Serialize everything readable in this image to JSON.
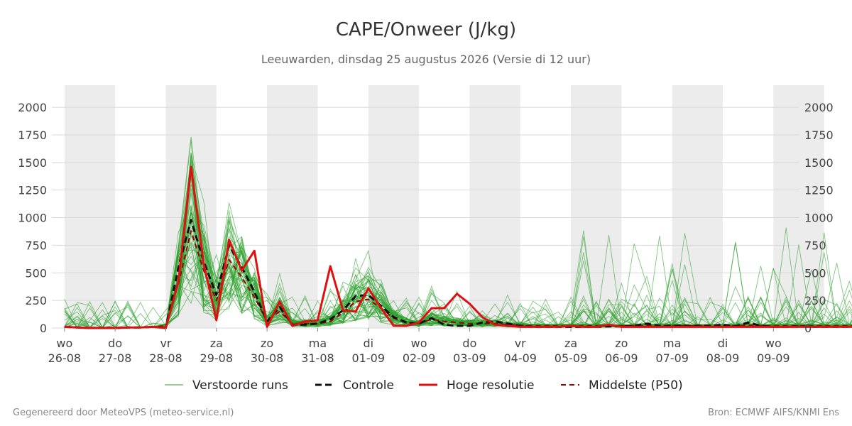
{
  "chart_data": {
    "type": "line",
    "title": "CAPE/Onweer (J/kg)",
    "subtitle": "Leeuwarden, dinsdag 25 augustus 2026 (Versie di 12 uur)",
    "ylim": [
      0,
      2200
    ],
    "yticks": [
      0,
      250,
      500,
      750,
      1000,
      1250,
      1500,
      1750,
      2000
    ],
    "xlim": [
      -0.25,
      14.5
    ],
    "x_step": 0.25,
    "x_ticks": [
      {
        "day": "wo",
        "date": "26-08"
      },
      {
        "day": "do",
        "date": "27-08"
      },
      {
        "day": "vr",
        "date": "28-08"
      },
      {
        "day": "za",
        "date": "29-08"
      },
      {
        "day": "zo",
        "date": "30-08"
      },
      {
        "day": "ma",
        "date": "31-08"
      },
      {
        "day": "di",
        "date": "01-09"
      },
      {
        "day": "wo",
        "date": "02-09"
      },
      {
        "day": "do",
        "date": "03-09"
      },
      {
        "day": "vr",
        "date": "04-09"
      },
      {
        "day": "za",
        "date": "05-09"
      },
      {
        "day": "zo",
        "date": "06-09"
      },
      {
        "day": "ma",
        "date": "07-09"
      },
      {
        "day": "di",
        "date": "08-09"
      },
      {
        "day": "wo",
        "date": "09-09"
      }
    ],
    "shaded_days": [
      0,
      2,
      4,
      6,
      8,
      10,
      12,
      14
    ],
    "grid": true,
    "legend_position": "bottom",
    "series": [
      {
        "name": "Verstoorde runs",
        "style": "ensemble",
        "color": "#2ca02c",
        "values": []
      },
      {
        "name": "Controle",
        "style": "dashed",
        "color": "#111111",
        "values": [
          10,
          5,
          0,
          0,
          0,
          5,
          5,
          10,
          0,
          550,
          980,
          600,
          300,
          750,
          550,
          330,
          60,
          190,
          30,
          30,
          40,
          80,
          160,
          290,
          300,
          200,
          100,
          50,
          40,
          90,
          30,
          20,
          20,
          50,
          60,
          40,
          20,
          10,
          10,
          10,
          10,
          10,
          10,
          15,
          15,
          20,
          40,
          20,
          20,
          20,
          20,
          20,
          30,
          15,
          50,
          20,
          10,
          10,
          15,
          10,
          10,
          10,
          10,
          10,
          10,
          10,
          15,
          10,
          10,
          30,
          70
        ]
      },
      {
        "name": "Hoge resolutie",
        "style": "solid",
        "color": "#dd1111",
        "values": [
          10,
          5,
          0,
          0,
          0,
          5,
          5,
          10,
          0,
          420,
          1460,
          580,
          70,
          800,
          520,
          700,
          10,
          240,
          20,
          60,
          70,
          560,
          160,
          150,
          360,
          180,
          20,
          20,
          50,
          180,
          180,
          310,
          220,
          100,
          30,
          20,
          10,
          10,
          10,
          10,
          20,
          10,
          10,
          30,
          10,
          10,
          10,
          10,
          10,
          10,
          10,
          10,
          10,
          10,
          10,
          10,
          10,
          10,
          10,
          10,
          10,
          10,
          10,
          10,
          10,
          10,
          10,
          10,
          10,
          10,
          10
        ]
      },
      {
        "name": "Middelste (P50)",
        "style": "dashed",
        "color": "#990000",
        "values": [
          8,
          5,
          5,
          5,
          5,
          5,
          5,
          8,
          20,
          400,
          880,
          520,
          250,
          620,
          460,
          280,
          60,
          150,
          40,
          40,
          40,
          60,
          140,
          240,
          260,
          180,
          90,
          50,
          40,
          80,
          60,
          50,
          40,
          40,
          40,
          30,
          25,
          20,
          20,
          20,
          20,
          20,
          20,
          20,
          20,
          20,
          25,
          20,
          20,
          20,
          20,
          20,
          20,
          20,
          25,
          20,
          20,
          20,
          20,
          20,
          20,
          20,
          20,
          20,
          20,
          20,
          20,
          20,
          20,
          25,
          40
        ]
      }
    ]
  },
  "footer": {
    "left": "Gegenereerd door MeteoVPS (meteo-service.nl)",
    "right": "Bron: ECMWF AIFS/KNMI Ens"
  }
}
